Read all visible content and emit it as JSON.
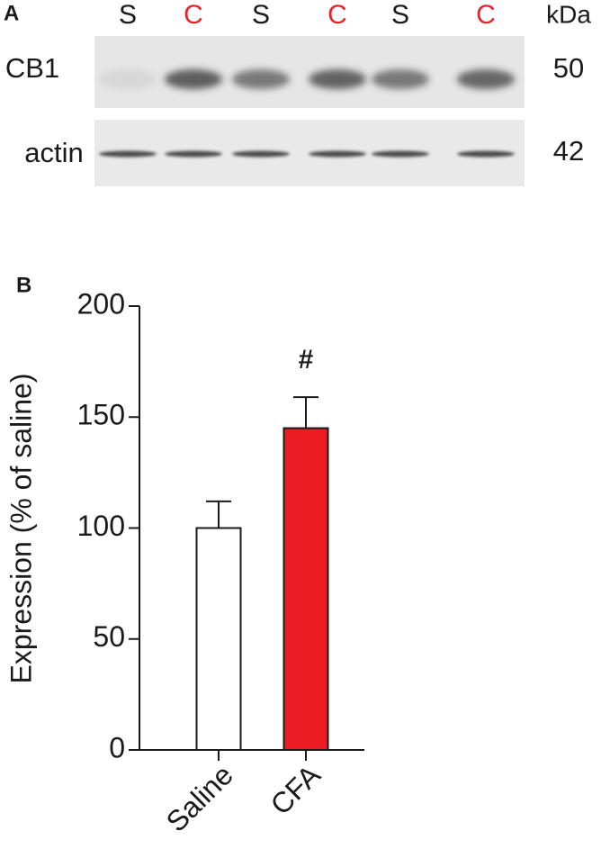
{
  "panel_a": {
    "label": "A",
    "lanes": [
      {
        "label": "S",
        "color": "#1a1a1a"
      },
      {
        "label": "C",
        "color": "#e3242b"
      },
      {
        "label": "S",
        "color": "#1a1a1a"
      },
      {
        "label": "C",
        "color": "#e3242b"
      },
      {
        "label": "S",
        "color": "#1a1a1a"
      },
      {
        "label": "C",
        "color": "#e3242b"
      }
    ],
    "unit": "kDa",
    "rows": [
      {
        "name": "CB1",
        "kda": 50
      },
      {
        "name": "actin",
        "kda": 42
      }
    ]
  },
  "chart_data": {
    "type": "bar",
    "panel_label": "B",
    "y_label": "Expression (% of saline)",
    "categories": [
      "Saline",
      "CFA"
    ],
    "values": [
      100,
      145
    ],
    "errors": [
      12,
      14
    ],
    "colors": [
      "#ffffff",
      "#ed1c24"
    ],
    "ylim": [
      0,
      200
    ],
    "yticks": [
      0,
      50,
      100,
      150,
      200
    ],
    "annotations": [
      {
        "text": "#",
        "x": "CFA"
      }
    ]
  }
}
